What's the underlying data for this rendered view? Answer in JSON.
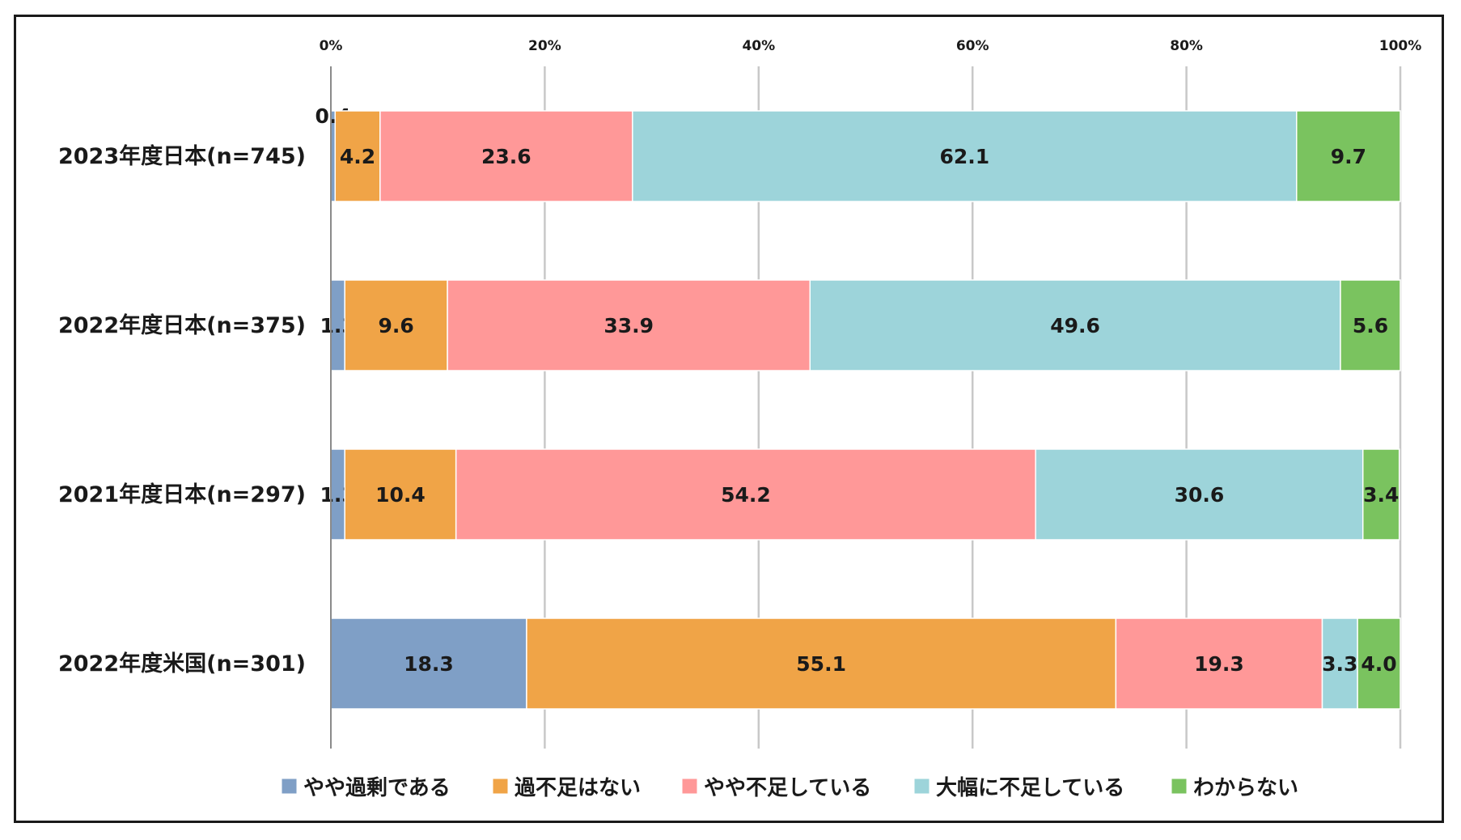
{
  "chart_data": {
    "type": "bar",
    "orientation": "horizontal",
    "stacked": true,
    "categories": [
      "2023年度日本(n=745)",
      "2022年度日本(n=375)",
      "2021年度日本(n=297)",
      "2022年度米国(n=301)"
    ],
    "series": [
      {
        "name": "やや過剰である",
        "color": "#7f9fc6",
        "values": [
          0.4,
          1.3,
          1.3,
          18.3
        ]
      },
      {
        "name": "過不足はない",
        "color": "#f0a447",
        "values": [
          4.2,
          9.6,
          10.4,
          55.1
        ]
      },
      {
        "name": "やや不足している",
        "color": "#ff9898",
        "values": [
          23.6,
          33.9,
          54.2,
          19.3
        ]
      },
      {
        "name": "大幅に不足している",
        "color": "#9dd4da",
        "values": [
          62.1,
          49.6,
          30.6,
          3.3
        ]
      },
      {
        "name": "わからない",
        "color": "#7ac35f",
        "values": [
          9.7,
          5.6,
          3.4,
          4.0
        ]
      }
    ],
    "data_labels": [
      [
        "0.4",
        "4.2",
        "23.6",
        "62.1",
        "9.7"
      ],
      [
        "1.3",
        "9.6",
        "33.9",
        "49.6",
        "5.6"
      ],
      [
        "1.3",
        "10.4",
        "54.2",
        "30.6",
        "3.4"
      ],
      [
        "18.3",
        "55.1",
        "19.3",
        "3.3",
        "4.0"
      ]
    ],
    "x_ticks": [
      "0%",
      "20%",
      "40%",
      "60%",
      "80%",
      "100%"
    ],
    "xlim": [
      0,
      100
    ],
    "x_axis_position": "top",
    "grid": true,
    "legend_position": "bottom",
    "title": "",
    "xlabel": "",
    "ylabel": ""
  }
}
